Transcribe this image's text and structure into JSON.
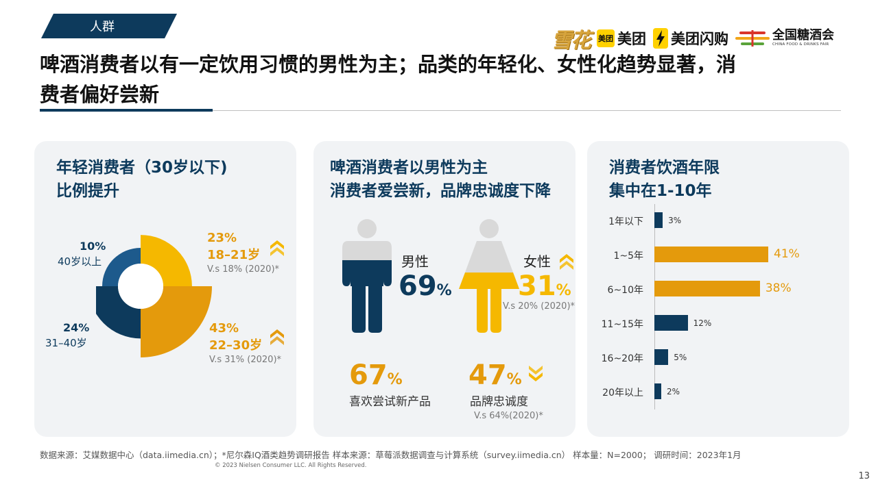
{
  "tag": "人群",
  "logos": {
    "snow": "雪花",
    "meituan_badge": "美团",
    "meituan": "美团",
    "meituan_shangou": "美团闪购",
    "fair_cn": "全国糖酒会",
    "fair_en": "CHINA FOOD & DRINKS FAIR"
  },
  "headline": {
    "line1": "啤酒消费者以有一定饮用习惯的男性为主；品类的年轻化、女性化趋势显著，消",
    "line2": "费者偏好尝新"
  },
  "panel1": {
    "title1": "年轻消费者（30岁以下)",
    "title2": "比例提升",
    "seg_a_pct": "23%",
    "seg_a_label": "18–21岁",
    "seg_a_vs": "V.s 18% (2020)*",
    "seg_b_pct": "43%",
    "seg_b_label": "22–30岁",
    "seg_b_vs": "V.s 31% (2020)*",
    "seg_c_pct": "10%",
    "seg_c_label": "40岁以上",
    "seg_d_pct": "24%",
    "seg_d_label": "31–40岁"
  },
  "panel2": {
    "title1": "啤酒消费者以男性为主",
    "title2": "消费者爱尝新，品牌忠诚度下降",
    "male_label": "男性",
    "male_value": "69",
    "female_label": "女性",
    "female_value": "31",
    "female_vs": "V.s 20% (2020)*",
    "new_value": "67",
    "new_label": "喜欢尝试新产品",
    "loyal_value": "47",
    "loyal_label": "品牌忠诚度",
    "loyal_vs": "V.s 64%(2020)*",
    "unit": "%"
  },
  "panel3": {
    "title1": "消费者饮酒年限",
    "title2": "集中在1-10年"
  },
  "footer": {
    "source": "数据来源：艾媒数据中心（data.iimedia.cn）；*尼尔森IQ酒类趋势调研报告  样本来源：草莓派数据调查与计算系统（survey.iimedia.cn）   样本量：N=2000；   调研时间：2023年1月",
    "copyright": "© 2023 Nielsen Consumer LLC. All Rights Reserved.",
    "page": "13"
  },
  "colors": {
    "navy": "#0d3a5c",
    "gold": "#e49a0c",
    "yellow": "#f5b800",
    "light_grey": "#d9d9d9",
    "panel_bg": "#f1f3f5"
  },
  "chart_data": [
    {
      "type": "pie",
      "title": "年轻消费者（30岁以下)比例提升",
      "categories": [
        "18–21岁",
        "22–30岁",
        "31–40岁",
        "40岁以上"
      ],
      "values": [
        23,
        43,
        24,
        10
      ],
      "colors": [
        "#f5b800",
        "#e49a0c",
        "#0d3a5c",
        "#1d5a8c"
      ]
    },
    {
      "type": "bar",
      "orientation": "horizontal",
      "title": "消费者饮酒年限集中在1-10年",
      "categories": [
        "1年以下",
        "1~5年",
        "6~10年",
        "11~15年",
        "16~20年",
        "20年以上"
      ],
      "values": [
        3,
        41,
        38,
        12,
        5,
        2
      ],
      "value_labels": [
        "3%",
        "41%",
        "38%",
        "12%",
        "5%",
        "2%"
      ],
      "highlight": [
        "1~5年",
        "6~10年"
      ],
      "xlim": [
        0,
        41
      ]
    }
  ]
}
